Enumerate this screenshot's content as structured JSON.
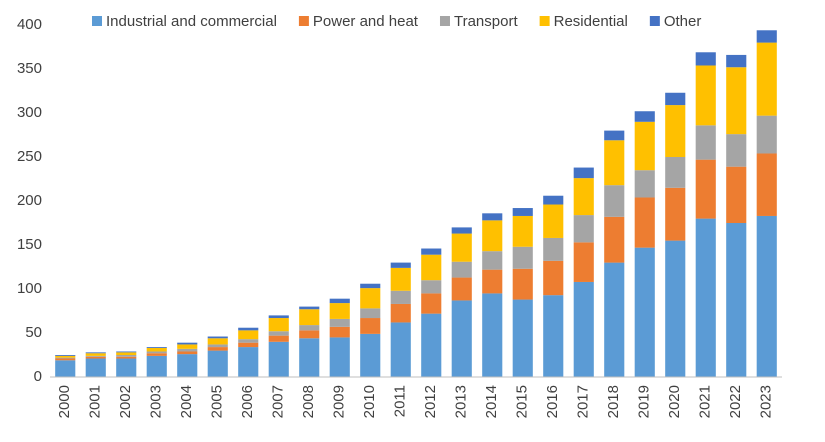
{
  "chart_data": {
    "type": "stacked-bar",
    "categories": [
      "2000",
      "2001",
      "2002",
      "2003",
      "2004",
      "2005",
      "2006",
      "2007",
      "2008",
      "2009",
      "2010",
      "2011",
      "2012",
      "2013",
      "2014",
      "2015",
      "2016",
      "2017",
      "2018",
      "2019",
      "2020",
      "2021",
      "2022",
      "2023"
    ],
    "series": [
      {
        "name": "Industrial and commercial",
        "color": "#5b9bd5",
        "values": [
          19,
          21,
          21,
          24,
          26,
          30,
          34,
          40,
          44,
          45,
          49,
          62,
          72,
          87,
          95,
          88,
          93,
          108,
          130,
          147,
          155,
          180,
          175,
          183
        ]
      },
      {
        "name": "Power and heat",
        "color": "#ed7d31",
        "values": [
          2,
          2,
          2,
          3,
          3,
          4,
          5,
          7,
          9,
          12,
          18,
          21,
          23,
          26,
          27,
          35,
          39,
          45,
          52,
          57,
          60,
          67,
          64,
          71
        ]
      },
      {
        "name": "Transport",
        "color": "#a5a5a5",
        "values": [
          1,
          1,
          2,
          2,
          3,
          3,
          4,
          5,
          6,
          9,
          11,
          15,
          15,
          18,
          21,
          25,
          26,
          31,
          36,
          31,
          35,
          39,
          37,
          43
        ]
      },
      {
        "name": "Residential",
        "color": "#ffc000",
        "values": [
          2,
          3,
          3,
          4,
          5,
          7,
          10,
          15,
          18,
          18,
          23,
          26,
          29,
          32,
          35,
          35,
          38,
          42,
          51,
          55,
          59,
          68,
          76,
          83
        ]
      },
      {
        "name": "Other",
        "color": "#4472c4",
        "values": [
          1,
          1,
          1,
          1,
          2,
          2,
          3,
          3,
          3,
          5,
          5,
          6,
          7,
          7,
          8,
          9,
          10,
          12,
          11,
          12,
          14,
          15,
          14,
          14
        ]
      }
    ],
    "ylim": [
      0,
      400
    ],
    "yticks": [
      0,
      50,
      100,
      150,
      200,
      250,
      300,
      350,
      400
    ],
    "grid": false,
    "legend": "top"
  }
}
